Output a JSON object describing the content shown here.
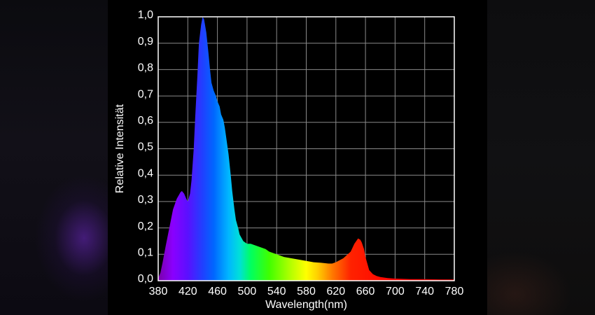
{
  "chart_data": {
    "type": "area",
    "xlabel": "Wavelength(nm)",
    "ylabel": "Relative Intensität",
    "xlim": [
      380,
      780
    ],
    "ylim": [
      0,
      1.0
    ],
    "x_ticks": [
      "380",
      "420",
      "460",
      "500",
      "540",
      "580",
      "620",
      "660",
      "700",
      "740",
      "780"
    ],
    "y_ticks": [
      "0,0",
      "0,1",
      "0,2",
      "0,3",
      "0,4",
      "0,5",
      "0,6",
      "0,7",
      "0,8",
      "0,9",
      "1,0"
    ],
    "grid": true,
    "fill": "visible-spectrum-gradient",
    "series": [
      {
        "x": [
          380,
          383,
          386,
          390,
          395,
          400,
          405,
          410,
          412,
          415,
          418,
          420,
          423,
          425,
          428,
          430,
          433,
          435,
          438,
          440,
          442,
          445,
          448,
          450,
          452,
          455,
          458,
          460,
          463,
          465,
          468,
          470,
          472,
          475,
          478,
          480,
          483,
          485,
          488,
          490,
          495,
          500,
          505,
          510,
          515,
          520,
          525,
          530,
          540,
          550,
          560,
          570,
          580,
          590,
          600,
          610,
          615,
          620,
          630,
          640,
          645,
          650,
          653,
          655,
          658,
          660,
          663,
          665,
          670,
          675,
          680,
          690,
          700,
          720,
          740,
          760,
          780
        ],
        "y": [
          0.01,
          0.03,
          0.07,
          0.13,
          0.2,
          0.27,
          0.31,
          0.335,
          0.34,
          0.33,
          0.31,
          0.3,
          0.33,
          0.38,
          0.5,
          0.62,
          0.78,
          0.9,
          0.97,
          1.0,
          0.99,
          0.94,
          0.86,
          0.8,
          0.75,
          0.72,
          0.7,
          0.68,
          0.66,
          0.63,
          0.61,
          0.58,
          0.54,
          0.48,
          0.4,
          0.34,
          0.27,
          0.23,
          0.2,
          0.175,
          0.15,
          0.14,
          0.14,
          0.135,
          0.13,
          0.125,
          0.12,
          0.11,
          0.1,
          0.09,
          0.085,
          0.08,
          0.075,
          0.07,
          0.068,
          0.065,
          0.065,
          0.07,
          0.085,
          0.11,
          0.14,
          0.16,
          0.155,
          0.145,
          0.12,
          0.09,
          0.06,
          0.04,
          0.025,
          0.018,
          0.014,
          0.01,
          0.008,
          0.006,
          0.006,
          0.005,
          0.005
        ]
      }
    ]
  },
  "colors": {
    "background": "#000000",
    "frame": "#ffffff",
    "grid": "#8a8a8a",
    "text": "#ffffff"
  }
}
